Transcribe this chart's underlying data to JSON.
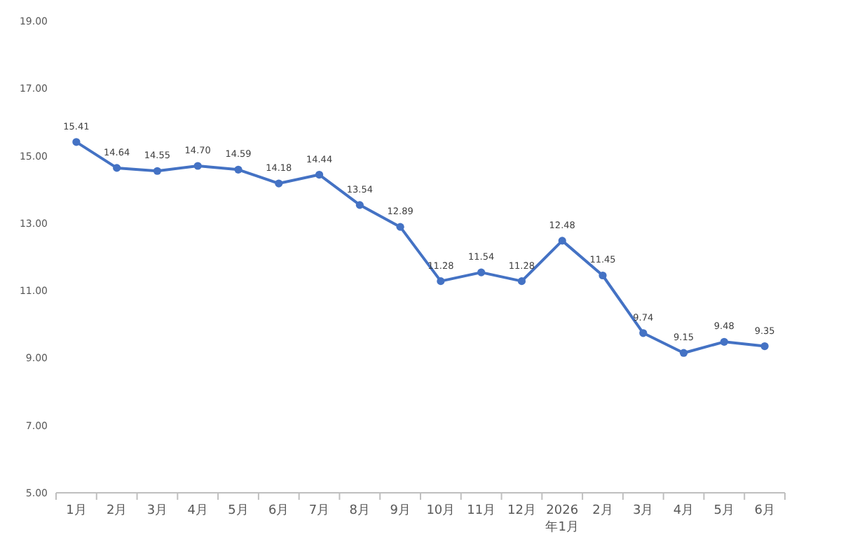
{
  "chart_data": {
    "type": "line",
    "categories": [
      "1月",
      "2月",
      "3月",
      "4月",
      "5月",
      "6月",
      "7月",
      "8月",
      "9月",
      "10月",
      "11月",
      "12月",
      "2026\n年1月",
      "2月",
      "3月",
      "4月",
      "5月",
      "6月"
    ],
    "series": [
      {
        "color": "#4472c4",
        "values": [
          15.41,
          14.64,
          14.55,
          14.7,
          14.59,
          14.18,
          14.44,
          13.54,
          12.89,
          11.28,
          11.54,
          11.28,
          12.48,
          11.45,
          9.74,
          9.15,
          9.48,
          9.35
        ],
        "value_labels": [
          "15.41",
          "14.64",
          "14.55",
          "14.70",
          "14.59",
          "14.18",
          "14.44",
          "13.54",
          "12.89",
          "11.28",
          "11.54",
          "11.28",
          "12.48",
          "11.45",
          "9.74",
          "9.15",
          "9.48",
          "9.35"
        ]
      }
    ],
    "ylim": [
      5,
      19
    ],
    "yticks": [
      {
        "value": 5,
        "label": "5.00"
      },
      {
        "value": 7,
        "label": "7.00"
      },
      {
        "value": 9,
        "label": "9.00"
      },
      {
        "value": 11,
        "label": "11.00"
      },
      {
        "value": 13,
        "label": "13.00"
      },
      {
        "value": 15,
        "label": "15.00"
      },
      {
        "value": 17,
        "label": "17.00"
      },
      {
        "value": 19,
        "label": "19.00"
      }
    ],
    "marker": "circle"
  }
}
